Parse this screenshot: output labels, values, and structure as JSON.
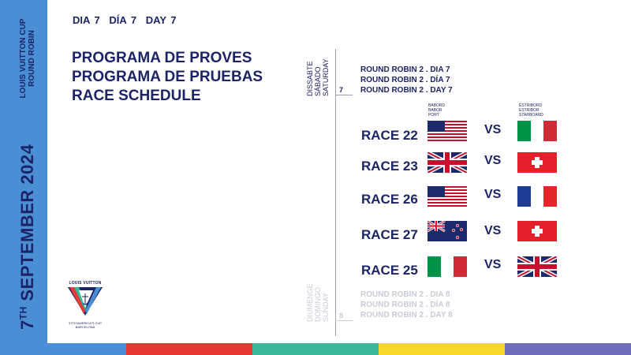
{
  "sidebar": {
    "series_line1": "LOUIS VUITTON CUP",
    "series_line2": "ROUND ROBIN",
    "date_day": "7",
    "date_suffix": "TH",
    "date_rest": " SEPTEMBER 2024"
  },
  "logo": {
    "brand": "LOUIS VUITTON",
    "sub1": "37TH AMERICA'S CUP",
    "sub2": "BARCELONA"
  },
  "header": {
    "days": [
      "DIA 7",
      "DÍA 7",
      "DAY 7"
    ],
    "title": [
      "PROGRAMA DE PROVES",
      "PROGRAMA DE PRUEBAS",
      "RACE SCHEDULE"
    ]
  },
  "today": {
    "labels": [
      "DISSABTE",
      "SÁBADO",
      "SATURDAY"
    ],
    "num": "7",
    "rr": [
      "ROUND ROBIN 2 . DIA 7",
      "ROUND ROBIN 2 . DÍA 7",
      "ROUND ROBIN 2 . DAY 7"
    ]
  },
  "tomorrow": {
    "labels": [
      "DIUMENGE",
      "DOMINGO",
      "SUNDAY"
    ],
    "num": "8",
    "rr": [
      "ROUND ROBIN 2 . DIA 8",
      "ROUND ROBIN 2 . DÍA 8",
      "ROUND ROBIN 2 . DAY 8"
    ]
  },
  "columns": {
    "port": [
      "BABORD",
      "BABOR",
      "PORT"
    ],
    "starboard": [
      "ESTRIBORD",
      "ESTRIBOR",
      "STARBOARD"
    ]
  },
  "vs_label": "VS",
  "races": [
    {
      "label": "RACE 22",
      "port_flag": "usa-flag-icon",
      "starboard_flag": "italy-flag-icon"
    },
    {
      "label": "RACE 23",
      "port_flag": "uk-flag-icon",
      "starboard_flag": "switzerland-flag-icon"
    },
    {
      "label": "RACE 26",
      "port_flag": "usa-flag-icon",
      "starboard_flag": "france-flag-icon"
    },
    {
      "label": "RACE 27",
      "port_flag": "new-zealand-flag-icon",
      "starboard_flag": "switzerland-flag-icon"
    },
    {
      "label": "RACE 25",
      "port_flag": "italy-flag-icon",
      "starboard_flag": "uk-flag-icon"
    }
  ],
  "colors": {
    "sidebar": "#4a8fd6",
    "navy": "#1c2466",
    "bottom_bar": [
      "#4a8fd6",
      "#e63935",
      "#3bb89a",
      "#f6d92c",
      "#6f6fb9"
    ]
  }
}
